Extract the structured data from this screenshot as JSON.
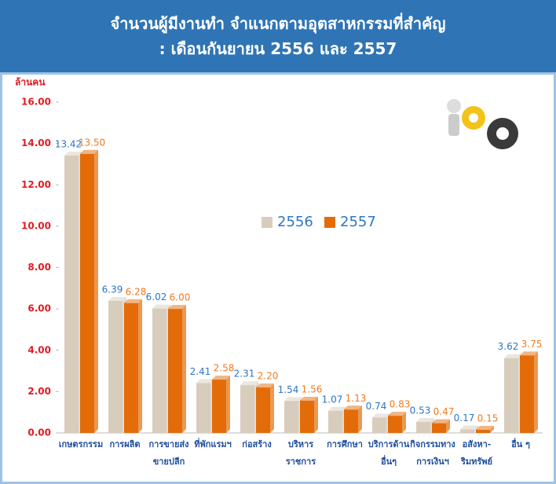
{
  "chart_data": {
    "type": "bar",
    "title": "จำนวนผู้มีงานทำ จำแนกตามอุตสาหกรรมที่สำคัญ\n: เดือนกันยายน 2556 และ 2557",
    "y_label": "ล้านคน",
    "categories": [
      "เกษตรกรรม",
      "การผลิต",
      "การขายส่ง\nขายปลีก",
      "ที่พักแรมฯ",
      "ก่อสร้าง",
      "บริหาร\nราชการ",
      "การศึกษา",
      "บริการด้าน\nอื่นๆ",
      "กิจกรรมทาง\nการเงินฯ",
      "อสังหา-\nริมทรัพย์",
      "อื่น ๆ"
    ],
    "series": [
      {
        "name": "2556",
        "color": "#d8cdbd",
        "label_color": "#2e75c6",
        "values": [
          13.42,
          6.39,
          6.02,
          2.41,
          2.31,
          1.54,
          1.07,
          0.74,
          0.53,
          0.17,
          3.62
        ],
        "value_labels": [
          "13.42",
          "6.39",
          "6.02",
          "2.41",
          "2.31",
          "1.54",
          "1.07",
          "0.74",
          "0.53",
          "0.17",
          "3.62"
        ]
      },
      {
        "name": "2557",
        "color": "#e36c09",
        "label_color": "#f07a20",
        "values": [
          13.5,
          6.28,
          6.0,
          2.58,
          2.2,
          1.56,
          1.13,
          0.83,
          0.47,
          0.15,
          3.75
        ],
        "value_labels": [
          "13.50",
          "6.28",
          "6.00",
          "2.58",
          "2.20",
          "1.56",
          "1.13",
          "0.83",
          "0.47",
          "0.15",
          "3.75"
        ]
      }
    ],
    "ylim": [
      0,
      16
    ],
    "yticks": [
      {
        "value": 0,
        "label": "0.00"
      },
      {
        "value": 2,
        "label": "2.00"
      },
      {
        "value": 4,
        "label": "4.00"
      },
      {
        "value": 6,
        "label": "6.00"
      },
      {
        "value": 8,
        "label": "8.00"
      },
      {
        "value": 10,
        "label": "10.00"
      },
      {
        "value": 12,
        "label": "12.00"
      },
      {
        "value": 14,
        "label": "14.00"
      },
      {
        "value": 16,
        "label": "16.00"
      }
    ],
    "grid": false,
    "legend": "center"
  }
}
